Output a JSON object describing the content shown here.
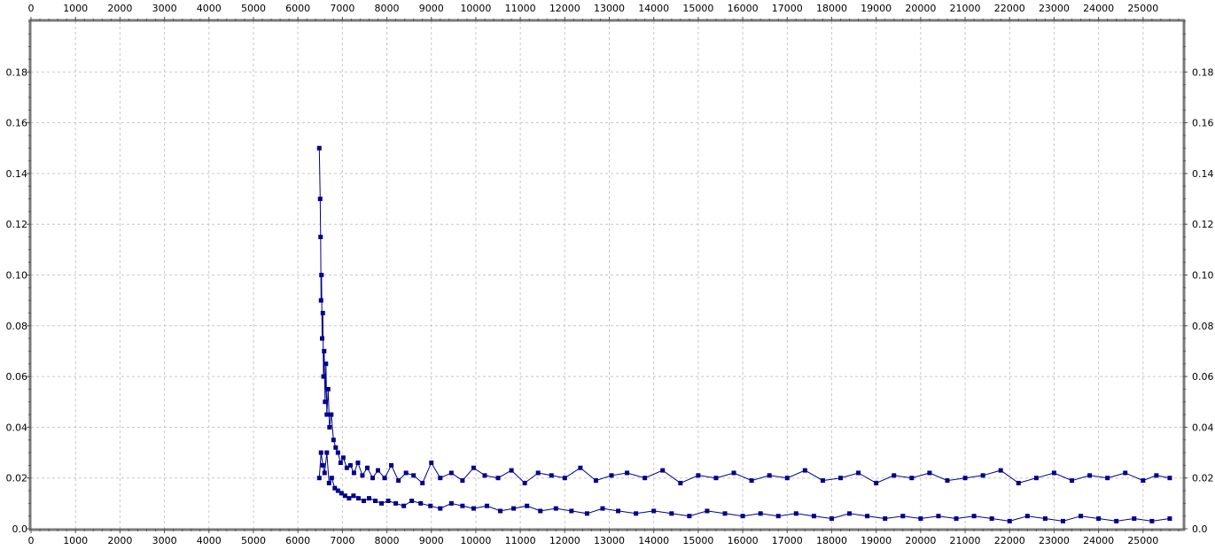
{
  "chart_data": {
    "type": "scatter",
    "title": "",
    "xlabel": "",
    "ylabel": "",
    "xlim": [
      0,
      25900
    ],
    "ylim": [
      0,
      0.2
    ],
    "x_ticks": [
      0,
      1000,
      2000,
      3000,
      4000,
      5000,
      6000,
      7000,
      8000,
      9000,
      10000,
      11000,
      12000,
      13000,
      14000,
      15000,
      16000,
      17000,
      18000,
      19000,
      20000,
      21000,
      22000,
      23000,
      24000,
      25000
    ],
    "y_ticks": [
      0.0,
      0.02,
      0.04,
      0.06,
      0.08,
      0.1,
      0.12,
      0.14,
      0.16,
      0.18
    ],
    "y_tick_labels": [
      "0.0",
      "0.02",
      "0.04",
      "0.06",
      "0.08",
      "0.10",
      "0.12",
      "0.14",
      "0.16",
      "0.18"
    ],
    "grid": true,
    "legend": "none",
    "series_color": "#00008b",
    "series": [
      {
        "x": [
          6480,
          6500,
          6510,
          6520,
          6530,
          6545,
          6560,
          6575,
          6590,
          6610,
          6630,
          6650,
          6680,
          6710,
          6750,
          6800,
          6850,
          6900,
          6960,
          7020,
          7100,
          7180,
          7260,
          7350,
          7450,
          7560,
          7680,
          7800,
          7950,
          8100,
          8260,
          8430,
          8600,
          8800,
          9000,
          9200,
          9450,
          9700,
          9950,
          10200,
          10500,
          10800,
          11100,
          11400,
          11700,
          12000,
          12350,
          12700,
          13050,
          13400,
          13800,
          14200,
          14600,
          15000,
          15400,
          15800,
          16200,
          16600,
          17000,
          17400,
          17800,
          18200,
          18600,
          19000,
          19400,
          19800,
          20200,
          20600,
          21000,
          21400,
          21800,
          22200,
          22600,
          23000,
          23400,
          23800,
          24200,
          24600,
          25000,
          25300,
          25600
        ],
        "y": [
          0.15,
          0.13,
          0.115,
          0.09,
          0.1,
          0.075,
          0.085,
          0.06,
          0.07,
          0.05,
          0.065,
          0.045,
          0.055,
          0.04,
          0.045,
          0.035,
          0.032,
          0.03,
          0.026,
          0.028,
          0.024,
          0.025,
          0.022,
          0.026,
          0.021,
          0.024,
          0.02,
          0.023,
          0.02,
          0.025,
          0.019,
          0.022,
          0.021,
          0.018,
          0.026,
          0.02,
          0.022,
          0.019,
          0.024,
          0.021,
          0.02,
          0.023,
          0.018,
          0.022,
          0.021,
          0.02,
          0.024,
          0.019,
          0.021,
          0.022,
          0.02,
          0.023,
          0.018,
          0.021,
          0.02,
          0.022,
          0.019,
          0.021,
          0.02,
          0.023,
          0.019,
          0.02,
          0.022,
          0.018,
          0.021,
          0.02,
          0.022,
          0.019,
          0.02,
          0.021,
          0.023,
          0.018,
          0.02,
          0.022,
          0.019,
          0.021,
          0.02,
          0.022,
          0.019,
          0.021,
          0.02
        ]
      },
      {
        "x": [
          6480,
          6520,
          6560,
          6600,
          6650,
          6700,
          6760,
          6830,
          6900,
          6980,
          7060,
          7150,
          7250,
          7360,
          7480,
          7600,
          7740,
          7880,
          8030,
          8200,
          8380,
          8560,
          8760,
          8980,
          9200,
          9450,
          9700,
          9950,
          10250,
          10550,
          10850,
          11150,
          11450,
          11800,
          12150,
          12500,
          12850,
          13200,
          13600,
          14000,
          14400,
          14800,
          15200,
          15600,
          16000,
          16400,
          16800,
          17200,
          17600,
          18000,
          18400,
          18800,
          19200,
          19600,
          20000,
          20400,
          20800,
          21200,
          21600,
          22000,
          22400,
          22800,
          23200,
          23600,
          24000,
          24400,
          24800,
          25200,
          25600
        ],
        "y": [
          0.02,
          0.03,
          0.025,
          0.022,
          0.03,
          0.018,
          0.02,
          0.016,
          0.015,
          0.014,
          0.013,
          0.012,
          0.013,
          0.012,
          0.011,
          0.012,
          0.011,
          0.01,
          0.011,
          0.01,
          0.009,
          0.011,
          0.01,
          0.009,
          0.008,
          0.01,
          0.009,
          0.008,
          0.009,
          0.007,
          0.008,
          0.009,
          0.007,
          0.008,
          0.007,
          0.006,
          0.008,
          0.007,
          0.006,
          0.007,
          0.006,
          0.005,
          0.007,
          0.006,
          0.005,
          0.006,
          0.005,
          0.006,
          0.005,
          0.004,
          0.006,
          0.005,
          0.004,
          0.005,
          0.004,
          0.005,
          0.004,
          0.005,
          0.004,
          0.003,
          0.005,
          0.004,
          0.003,
          0.005,
          0.004,
          0.003,
          0.004,
          0.003,
          0.004
        ]
      }
    ]
  }
}
